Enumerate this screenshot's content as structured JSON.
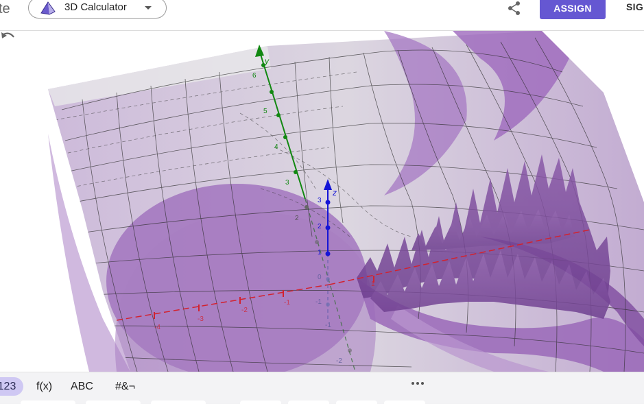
{
  "header": {
    "app_partial": "te",
    "app_name": "3D Calculator",
    "assign_label": "ASSIGN",
    "signin_partial": "SIG",
    "icons": {
      "app": "pyramid-icon",
      "dropdown": "caret-down-icon",
      "share": "share-icon"
    }
  },
  "view": {
    "undo_icon": "undo-icon",
    "axes": {
      "y_label": "y",
      "z_label": "z",
      "y_ticks": [
        "6",
        "5",
        "4",
        "3",
        "2"
      ],
      "z_ticks": [
        "3",
        "2",
        "1"
      ],
      "z_neg_ticks": [
        "0",
        "-1",
        "-1",
        "-2"
      ],
      "x_ticks": [
        "-4",
        "-3",
        "-2",
        "-1",
        "1"
      ]
    },
    "colors": {
      "surface": "#9c6ab8",
      "x_axis": "#d2222f",
      "y_axis": "#118811",
      "z_axis": "#1414d6"
    }
  },
  "keyboard": {
    "tabs": [
      "123",
      "f(x)",
      "ABC",
      "#&¬"
    ],
    "active_tab": "123",
    "more_icon": "more-horizontal-icon"
  }
}
